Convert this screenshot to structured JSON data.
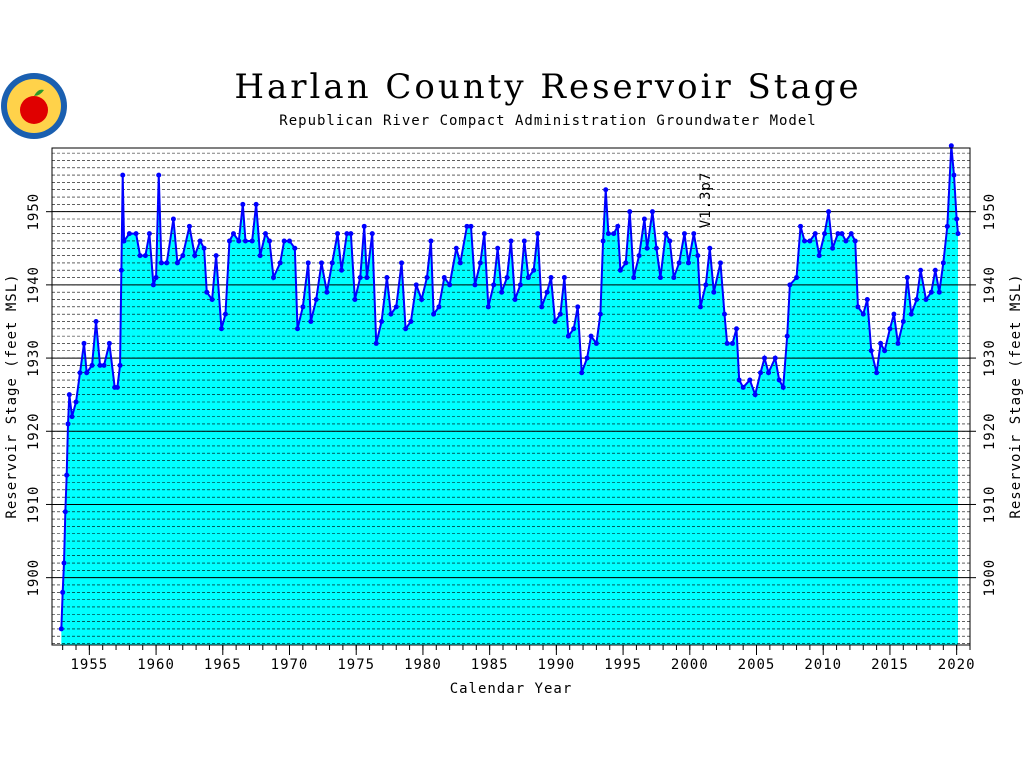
{
  "chart_data": {
    "type": "area",
    "title": "Harlan County Reservoir Stage",
    "subtitle": "Republican River Compact Administration Groundwater Model",
    "x_label": "Calendar Year",
    "y_label": "Reservoir Stage (feet MSL)",
    "y2_label": "Reservoir Stage (feet MSL)",
    "annotation": "V1.3p7",
    "xlim": [
      1952.2,
      2021
    ],
    "ylim": [
      1890.8,
      1958.7
    ],
    "y2lim": [
      1890.8,
      1958.7
    ],
    "xticks": [
      1955,
      1960,
      1965,
      1970,
      1975,
      1980,
      1985,
      1990,
      1995,
      2000,
      2005,
      2010,
      2015,
      2020
    ],
    "yticks": [
      1900,
      1910,
      1920,
      1930,
      1940,
      1950
    ],
    "y2ticks": [
      1900,
      1910,
      1920,
      1930,
      1940,
      1950
    ],
    "grid": true,
    "minor_grid": true,
    "series": [
      {
        "color": "#0000ff",
        "fill": "#00ffff",
        "x": [
          1952.9,
          1953.0,
          1953.1,
          1953.2,
          1953.3,
          1953.4,
          1953.5,
          1953.7,
          1954.0,
          1954.3,
          1954.6,
          1954.8,
          1955.2,
          1955.5,
          1955.8,
          1956.1,
          1956.5,
          1956.9,
          1957.1,
          1957.3,
          1957.4,
          1957.5,
          1957.6,
          1958.0,
          1958.5,
          1958.8,
          1959.2,
          1959.5,
          1959.8,
          1960.0,
          1960.2,
          1960.4,
          1960.8,
          1961.3,
          1961.6,
          1962.0,
          1962.5,
          1962.9,
          1963.3,
          1963.6,
          1963.8,
          1964.2,
          1964.5,
          1964.9,
          1965.2,
          1965.5,
          1965.8,
          1966.2,
          1966.5,
          1966.7,
          1967.2,
          1967.5,
          1967.8,
          1968.2,
          1968.5,
          1968.8,
          1969.3,
          1969.6,
          1970.0,
          1970.4,
          1970.6,
          1971.0,
          1971.4,
          1971.6,
          1972.0,
          1972.4,
          1972.8,
          1973.2,
          1973.6,
          1973.9,
          1974.3,
          1974.6,
          1974.9,
          1975.3,
          1975.6,
          1975.8,
          1976.2,
          1976.5,
          1976.9,
          1977.3,
          1977.6,
          1978.0,
          1978.4,
          1978.7,
          1979.1,
          1979.5,
          1979.9,
          1980.3,
          1980.6,
          1980.8,
          1981.2,
          1981.6,
          1982.0,
          1982.5,
          1982.8,
          1983.3,
          1983.6,
          1983.9,
          1984.3,
          1984.6,
          1984.9,
          1985.3,
          1985.6,
          1985.9,
          1986.3,
          1986.6,
          1986.9,
          1987.3,
          1987.6,
          1987.9,
          1988.3,
          1988.6,
          1988.9,
          1989.3,
          1989.6,
          1989.9,
          1990.3,
          1990.6,
          1990.9,
          1991.3,
          1991.6,
          1991.9,
          1992.3,
          1992.6,
          1993.0,
          1993.3,
          1993.5,
          1993.7,
          1993.9,
          1994.3,
          1994.6,
          1994.8,
          1995.2,
          1995.5,
          1995.8,
          1996.2,
          1996.6,
          1996.8,
          1997.2,
          1997.5,
          1997.8,
          1998.2,
          1998.5,
          1998.8,
          1999.2,
          1999.6,
          1999.9,
          2000.3,
          2000.6,
          2000.8,
          2001.2,
          2001.5,
          2001.8,
          2002.3,
          2002.6,
          2002.8,
          2003.2,
          2003.5,
          2003.7,
          2004.0,
          2004.5,
          2004.9,
          2005.3,
          2005.6,
          2005.9,
          2006.4,
          2006.7,
          2007.0,
          2007.3,
          2007.5,
          2008.0,
          2008.3,
          2008.6,
          2009.0,
          2009.4,
          2009.7,
          2010.1,
          2010.4,
          2010.7,
          2011.1,
          2011.4,
          2011.7,
          2012.1,
          2012.4,
          2012.6,
          2013.0,
          2013.3,
          2013.6,
          2014.0,
          2014.3,
          2014.6,
          2015.0,
          2015.3,
          2015.6,
          2016.0,
          2016.3,
          2016.6,
          2017.0,
          2017.3,
          2017.7,
          2018.1,
          2018.4,
          2018.7,
          2019.0,
          2019.3,
          2019.6,
          2019.8,
          2020.0,
          2020.1
        ],
        "values": [
          1893,
          1898,
          1902,
          1909,
          1914,
          1921,
          1925,
          1922,
          1924,
          1928,
          1932,
          1928,
          1929,
          1935,
          1929,
          1929,
          1932,
          1926,
          1926,
          1929,
          1942,
          1955,
          1946,
          1947,
          1947,
          1944,
          1944,
          1947,
          1940,
          1941,
          1955,
          1943,
          1943,
          1949,
          1943,
          1944,
          1948,
          1944,
          1946,
          1945,
          1939,
          1938,
          1944,
          1934,
          1936,
          1946,
          1947,
          1946,
          1951,
          1946,
          1946,
          1951,
          1944,
          1947,
          1946,
          1941,
          1943,
          1946,
          1946,
          1945,
          1934,
          1937,
          1943,
          1935,
          1938,
          1943,
          1939,
          1943,
          1947,
          1942,
          1947,
          1947,
          1938,
          1941,
          1948,
          1941,
          1947,
          1932,
          1935,
          1941,
          1936,
          1937,
          1943,
          1934,
          1935,
          1940,
          1938,
          1941,
          1946,
          1936,
          1937,
          1941,
          1940,
          1945,
          1943,
          1948,
          1948,
          1940,
          1943,
          1947,
          1937,
          1940,
          1945,
          1939,
          1941,
          1946,
          1938,
          1940,
          1946,
          1941,
          1942,
          1947,
          1937,
          1939,
          1941,
          1935,
          1936,
          1941,
          1933,
          1934,
          1937,
          1928,
          1930,
          1933,
          1932,
          1936,
          1946,
          1953,
          1947,
          1947,
          1948,
          1942,
          1943,
          1950,
          1941,
          1944,
          1949,
          1945,
          1950,
          1945,
          1941,
          1947,
          1946,
          1941,
          1943,
          1947,
          1943,
          1947,
          1944,
          1937,
          1940,
          1945,
          1939,
          1943,
          1936,
          1932,
          1932,
          1934,
          1927,
          1926,
          1927,
          1925,
          1928,
          1930,
          1928,
          1930,
          1927,
          1926,
          1933,
          1940,
          1941,
          1948,
          1946,
          1946,
          1947,
          1944,
          1947,
          1950,
          1945,
          1947,
          1947,
          1946,
          1947,
          1946,
          1937,
          1936,
          1938,
          1931,
          1928,
          1932,
          1931,
          1934,
          1936,
          1932,
          1935,
          1941,
          1936,
          1938,
          1942,
          1938,
          1939,
          1942,
          1939,
          1943,
          1948,
          1959,
          1955,
          1949,
          1947
        ]
      }
    ]
  }
}
